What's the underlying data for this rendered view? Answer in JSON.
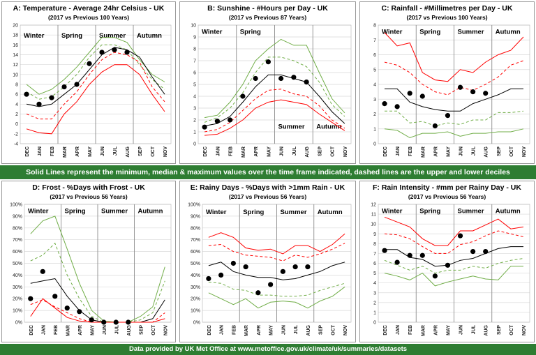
{
  "months": [
    "DEC",
    "JAN",
    "FEB",
    "MAR",
    "APR",
    "MAY",
    "JUN",
    "JUL",
    "AUG",
    "SEP",
    "OCT",
    "NOV"
  ],
  "season_labels": [
    "Winter",
    "Spring",
    "Summer",
    "Autumn"
  ],
  "colors": {
    "max": "#70ad47",
    "median": "#000000",
    "min": "#ff0000",
    "dot": "#000000",
    "banner": "#2e7d32",
    "grid": "#d9d9d9"
  },
  "notes": {
    "middle_banner": "Solid Lines represent the minimum, median & maximum values over the time frame indicated, dashed lines are the upper and lower deciles",
    "bottom_banner": "Data provided by UK Met Office at www.metoffice.gov.uk/climate/uk/summaries/datasets"
  },
  "chart_data": [
    {
      "id": "A",
      "type": "line",
      "title": "A: Temperature - Average 24hr Celsius - UK",
      "subtitle": "(2017 vs Previous 100 Years)",
      "ylim": [
        -4,
        20
      ],
      "ystep": 2,
      "ytick_format": "int",
      "seasons": {
        "label_y": 18,
        "row": "top"
      },
      "series": [
        {
          "role": "max",
          "style": "solid",
          "color": "#70ad47",
          "values": [
            8,
            6,
            7,
            9,
            11.5,
            14.5,
            17.5,
            17.5,
            16.5,
            13,
            10,
            8.5
          ]
        },
        {
          "role": "upper-decile",
          "style": "dashed",
          "color": "#70ad47",
          "values": [
            6.5,
            5,
            5.5,
            7.5,
            10,
            13.5,
            16,
            16,
            15,
            12,
            9,
            7
          ]
        },
        {
          "role": "median",
          "style": "solid",
          "color": "#000000",
          "values": [
            4,
            3.5,
            4,
            6,
            8,
            11,
            14,
            15.5,
            15,
            13.5,
            9.5,
            6
          ]
        },
        {
          "role": "lower-decile",
          "style": "dashed",
          "color": "#ff0000",
          "values": [
            2,
            1,
            1,
            4,
            6.5,
            10,
            13,
            14.5,
            14,
            12.5,
            7.5,
            4.5
          ]
        },
        {
          "role": "min",
          "style": "solid",
          "color": "#ff0000",
          "values": [
            -1,
            -1.8,
            -2,
            2,
            4.5,
            8,
            10.5,
            12,
            12,
            10,
            6,
            2.5
          ]
        },
        {
          "role": "2017",
          "style": "dot",
          "color": "#000000",
          "values": [
            6,
            4,
            5.3,
            7.5,
            8,
            12.2,
            14.5,
            15,
            14.5,
            null,
            null,
            null
          ]
        }
      ]
    },
    {
      "id": "B",
      "type": "line",
      "title": "B: Sunshine - #Hours per Day - UK",
      "subtitle": "(2017 vs Previous 87 Years)",
      "ylim": [
        0,
        10
      ],
      "ystep": 1,
      "ytick_format": "int",
      "seasons": {
        "label_y": 9.5,
        "row": "mixed",
        "low_y": 1.5
      },
      "series": [
        {
          "role": "max",
          "style": "solid",
          "color": "#70ad47",
          "values": [
            2.2,
            2.4,
            3.5,
            5,
            7,
            8,
            8.8,
            8.3,
            8.3,
            6,
            3.8,
            2.6
          ]
        },
        {
          "role": "upper-decile",
          "style": "dashed",
          "color": "#70ad47",
          "values": [
            1.8,
            2.2,
            3,
            4.3,
            6,
            7.3,
            7.3,
            7,
            6.5,
            5.2,
            3.3,
            2.3
          ]
        },
        {
          "role": "median",
          "style": "solid",
          "color": "#000000",
          "values": [
            1.5,
            1.7,
            2.3,
            3.5,
            4.8,
            5.8,
            5.8,
            5.5,
            5.2,
            4,
            2.7,
            1.7
          ]
        },
        {
          "role": "lower-decile",
          "style": "dashed",
          "color": "#ff0000",
          "values": [
            1,
            1.2,
            1.8,
            2.8,
            3.8,
            4.5,
            4.6,
            4.2,
            4,
            3.2,
            2,
            1.3
          ]
        },
        {
          "role": "min",
          "style": "solid",
          "color": "#ff0000",
          "values": [
            0.7,
            0.8,
            1.3,
            2,
            3,
            3.5,
            3.7,
            3.5,
            3.3,
            2.5,
            1.8,
            1.1
          ]
        },
        {
          "role": "2017",
          "style": "dot",
          "color": "#000000",
          "values": [
            1.4,
            1.9,
            2,
            4,
            5.5,
            6.9,
            5.5,
            5.6,
            5.2,
            null,
            null,
            null
          ]
        }
      ]
    },
    {
      "id": "C",
      "type": "line",
      "title": "C: Rainfall - #Millimetres per Day - UK",
      "subtitle": "(2017 vs Previous 100 Years)",
      "ylim": [
        0,
        8
      ],
      "ystep": 1,
      "ytick_format": "int",
      "seasons": {
        "label_y": 7.6,
        "row": "top"
      },
      "series": [
        {
          "role": "max",
          "style": "solid",
          "color": "#ff0000",
          "values": [
            7.5,
            6.6,
            6.8,
            4.8,
            4.3,
            4.2,
            5,
            4.8,
            5.5,
            6,
            6.3,
            7.2
          ]
        },
        {
          "role": "upper-decile",
          "style": "dashed",
          "color": "#ff0000",
          "values": [
            5.5,
            5.3,
            4.8,
            4,
            3.5,
            3.3,
            3.8,
            3.6,
            4,
            4.5,
            5.3,
            5.6
          ]
        },
        {
          "role": "median",
          "style": "solid",
          "color": "#000000",
          "values": [
            3.7,
            3.7,
            2.8,
            2.5,
            2.3,
            2.2,
            2.2,
            2.7,
            3,
            3.3,
            3.7,
            3.7
          ]
        },
        {
          "role": "lower-decile",
          "style": "dashed",
          "color": "#70ad47",
          "values": [
            2.2,
            2.2,
            1.4,
            1.5,
            1.2,
            1.4,
            1.3,
            1.6,
            1.6,
            2.1,
            2.1,
            2.2
          ]
        },
        {
          "role": "min",
          "style": "solid",
          "color": "#70ad47",
          "values": [
            1,
            0.9,
            0.4,
            0.7,
            0.7,
            0.8,
            0.5,
            0.7,
            0.7,
            0.8,
            0.8,
            1
          ]
        },
        {
          "role": "2017",
          "style": "dot",
          "color": "#000000",
          "values": [
            2.7,
            2.5,
            3.4,
            3.2,
            1.2,
            1.9,
            3.8,
            3.5,
            3.4,
            null,
            null,
            null
          ]
        }
      ]
    },
    {
      "id": "D",
      "type": "line",
      "title": "D: Frost - %Days with Frost - UK",
      "subtitle": "(2017 vs Previous 56 Years)",
      "ylim": [
        0,
        100
      ],
      "ystep": 10,
      "ytick_format": "percent",
      "seasons": {
        "label_y": 95,
        "row": "top"
      },
      "series": [
        {
          "role": "max",
          "style": "solid",
          "color": "#70ad47",
          "values": [
            75,
            86,
            90,
            62,
            33,
            10,
            1,
            0,
            0,
            5,
            13,
            47
          ]
        },
        {
          "role": "upper-decile",
          "style": "dashed",
          "color": "#70ad47",
          "values": [
            52,
            57,
            67,
            40,
            20,
            5,
            0,
            0,
            0,
            2,
            8,
            35
          ]
        },
        {
          "role": "median",
          "style": "solid",
          "color": "#000000",
          "values": [
            33,
            35,
            37,
            22,
            10,
            2,
            0,
            0,
            0,
            0,
            3,
            19
          ]
        },
        {
          "role": "lower-decile",
          "style": "dashed",
          "color": "#ff0000",
          "values": [
            15,
            19,
            13,
            8,
            3,
            0,
            0,
            0,
            0,
            0,
            0,
            8
          ]
        },
        {
          "role": "min",
          "style": "solid",
          "color": "#ff0000",
          "values": [
            5,
            20,
            12,
            4,
            1,
            0,
            0,
            0,
            0,
            0,
            0,
            3
          ]
        },
        {
          "role": "2017",
          "style": "dot",
          "color": "#000000",
          "values": [
            20,
            43,
            22,
            12,
            9,
            2,
            0,
            0,
            0,
            null,
            null,
            null
          ]
        }
      ]
    },
    {
      "id": "E",
      "type": "line",
      "title": "E: Rainy Days - %Days with >1mm Rain - UK",
      "subtitle": "(2017 vs Previous 56 Years)",
      "ylim": [
        0,
        100
      ],
      "ystep": 10,
      "ytick_format": "percent",
      "seasons": {
        "label_y": 94,
        "row": "top"
      },
      "series": [
        {
          "role": "max",
          "style": "solid",
          "color": "#ff0000",
          "values": [
            72,
            76,
            72,
            63,
            61,
            62,
            58,
            65,
            65,
            60,
            66,
            75
          ]
        },
        {
          "role": "upper-decile",
          "style": "dashed",
          "color": "#ff0000",
          "values": [
            65,
            66,
            60,
            57,
            56,
            55,
            52,
            57,
            55,
            58,
            62,
            67
          ]
        },
        {
          "role": "median",
          "style": "solid",
          "color": "#000000",
          "values": [
            48,
            51,
            43,
            40,
            38,
            38,
            36,
            37,
            40,
            43,
            48,
            51
          ]
        },
        {
          "role": "lower-decile",
          "style": "dashed",
          "color": "#70ad47",
          "values": [
            34,
            33,
            28,
            27,
            23,
            23,
            22,
            22,
            23,
            27,
            30,
            33
          ]
        },
        {
          "role": "min",
          "style": "solid",
          "color": "#70ad47",
          "values": [
            25,
            20,
            15,
            20,
            12,
            17,
            18,
            17,
            12,
            18,
            22,
            30
          ]
        },
        {
          "role": "2017",
          "style": "dot",
          "color": "#000000",
          "values": [
            37,
            40,
            50,
            47,
            25,
            32,
            43,
            47,
            47,
            null,
            null,
            null
          ]
        }
      ]
    },
    {
      "id": "F",
      "type": "line",
      "title": "F: Rain Intensity - #mm per Rainy Day - UK",
      "subtitle": "(2017 vs Previous 56 Years)",
      "ylim": [
        0,
        12
      ],
      "ystep": 1,
      "ytick_format": "int",
      "seasons": {
        "label_y": 11.4,
        "row": "top"
      },
      "series": [
        {
          "role": "max",
          "style": "solid",
          "color": "#ff0000",
          "values": [
            10.7,
            10.2,
            9.7,
            8.5,
            7.8,
            7.8,
            9.3,
            9.3,
            9.9,
            10.5,
            9.5,
            9.7
          ]
        },
        {
          "role": "upper-decile",
          "style": "dashed",
          "color": "#ff0000",
          "values": [
            9,
            8.9,
            8.5,
            7.7,
            7,
            7,
            7.9,
            8.2,
            8.8,
            9.3,
            9,
            8.7
          ]
        },
        {
          "role": "median",
          "style": "solid",
          "color": "#000000",
          "values": [
            7.4,
            7.4,
            6.6,
            6.4,
            5.7,
            5.8,
            6.3,
            6.5,
            7,
            7.5,
            7.7,
            7.7
          ]
        },
        {
          "role": "lower-decile",
          "style": "dashed",
          "color": "#70ad47",
          "values": [
            6.3,
            5.8,
            5.3,
            5.7,
            5,
            5.3,
            5.3,
            5.7,
            5.5,
            6,
            6.3,
            6.5
          ]
        },
        {
          "role": "min",
          "style": "solid",
          "color": "#70ad47",
          "values": [
            5,
            4.7,
            4.3,
            5,
            3.7,
            4.1,
            4.4,
            4.7,
            4.4,
            4.3,
            5.7,
            5.7
          ]
        },
        {
          "role": "2017",
          "style": "dot",
          "color": "#000000",
          "values": [
            7.3,
            6.1,
            6.8,
            6.8,
            4.7,
            5.8,
            8.8,
            7.2,
            7.2,
            null,
            null,
            null
          ]
        }
      ]
    }
  ]
}
